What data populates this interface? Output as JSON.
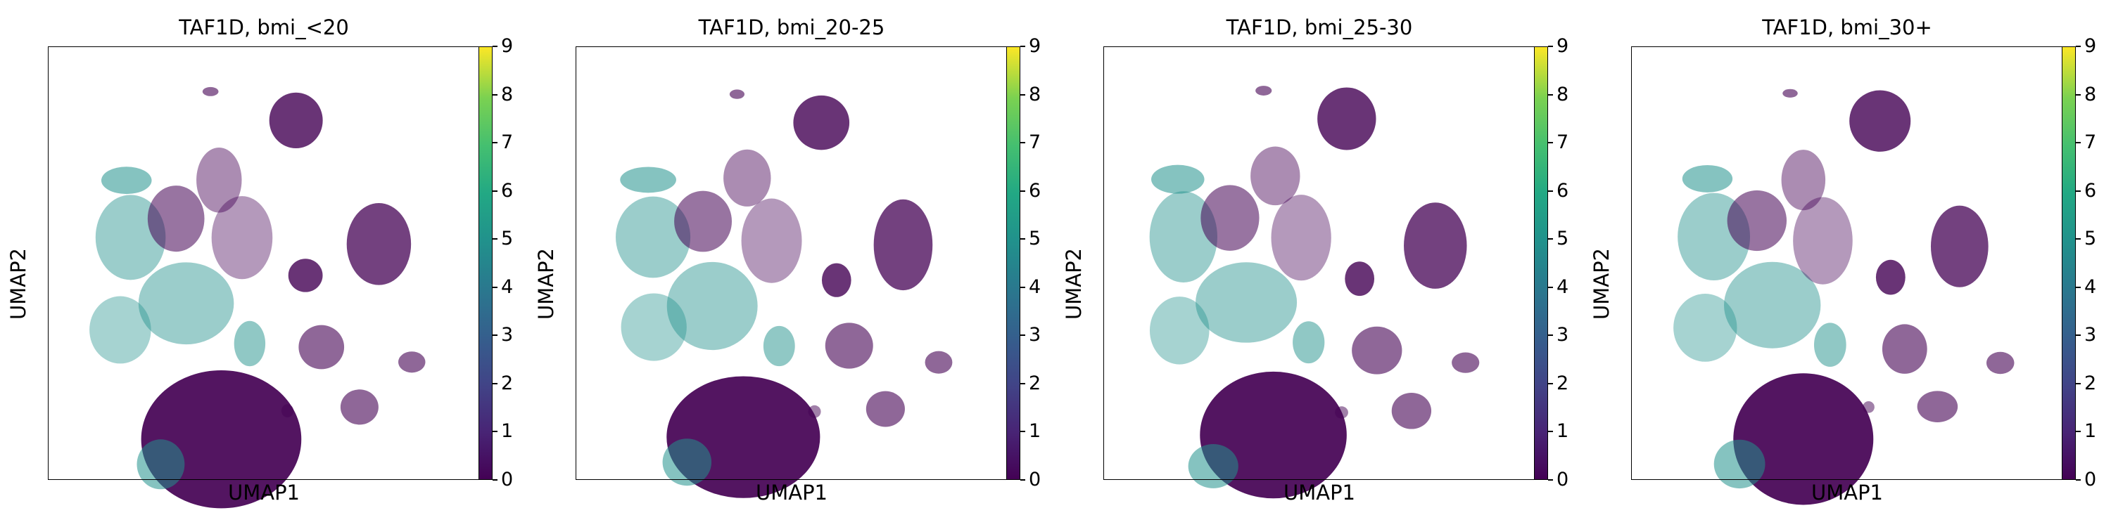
{
  "chart_data": [
    {
      "type": "scatter",
      "title": "TAF1D, bmi_<20",
      "xlabel": "UMAP1",
      "ylabel": "UMAP2",
      "xticks": [],
      "yticks": [],
      "colorbar": {
        "colormap": "viridis",
        "range": [
          0,
          9
        ],
        "ticks": [
          0,
          1,
          2,
          3,
          4,
          5,
          6,
          7,
          8,
          9
        ]
      },
      "colors": {
        "low": "#440154",
        "mid": "#21918c",
        "high": "#fde725"
      }
    },
    {
      "type": "scatter",
      "title": "TAF1D, bmi_20-25",
      "xlabel": "UMAP1",
      "ylabel": "UMAP2",
      "xticks": [],
      "yticks": [],
      "colorbar": {
        "colormap": "viridis",
        "range": [
          0,
          9
        ],
        "ticks": [
          0,
          1,
          2,
          3,
          4,
          5,
          6,
          7,
          8,
          9
        ]
      },
      "colors": {
        "low": "#440154",
        "mid": "#21918c",
        "high": "#fde725"
      }
    },
    {
      "type": "scatter",
      "title": "TAF1D, bmi_25-30",
      "xlabel": "UMAP1",
      "ylabel": "UMAP2",
      "xticks": [],
      "yticks": [],
      "colorbar": {
        "colormap": "viridis",
        "range": [
          0,
          9
        ],
        "ticks": [
          0,
          1,
          2,
          3,
          4,
          5,
          6,
          7,
          8,
          9
        ]
      },
      "colors": {
        "low": "#440154",
        "mid": "#21918c",
        "high": "#fde725"
      }
    },
    {
      "type": "scatter",
      "title": "TAF1D, bmi_30+",
      "xlabel": "UMAP1",
      "ylabel": "UMAP2",
      "xticks": [],
      "yticks": [],
      "colorbar": {
        "colormap": "viridis",
        "range": [
          0,
          9
        ],
        "ticks": [
          0,
          1,
          2,
          3,
          4,
          5,
          6,
          7,
          8,
          9
        ]
      },
      "colors": {
        "low": "#440154",
        "mid": "#21918c",
        "high": "#fde725"
      }
    }
  ]
}
